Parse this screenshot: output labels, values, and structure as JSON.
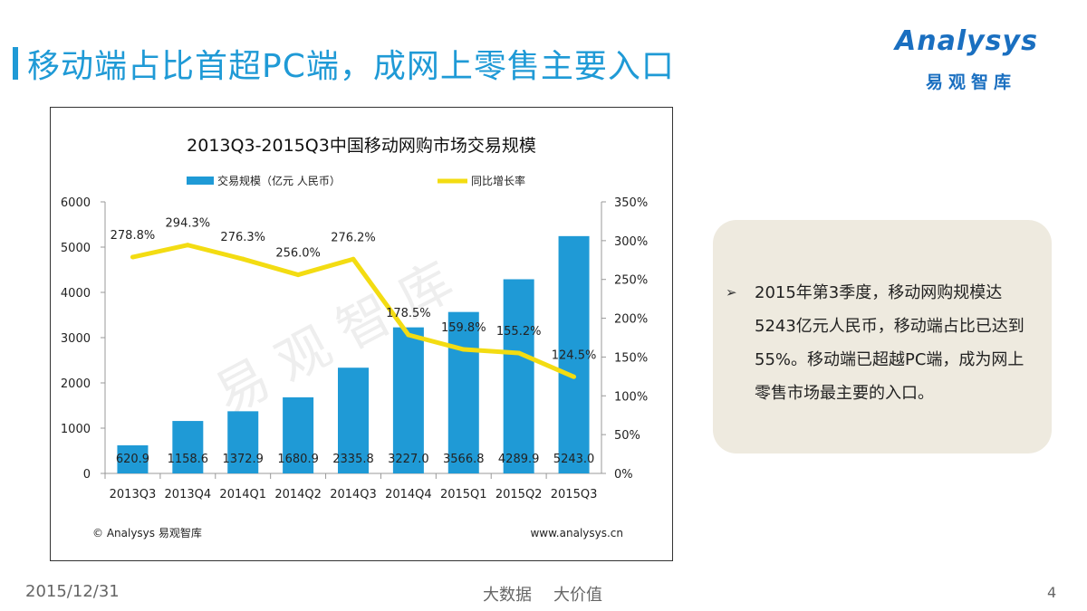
{
  "slide": {
    "title": "移动端占比首超PC端，成网上零售主要入口",
    "brand_accent": "#1f9ad6"
  },
  "logo": {
    "word": "Analysys",
    "sub": "易观智库",
    "color": "#1a6fc0"
  },
  "chart_data": {
    "type": "bar",
    "title": "2013Q3-2015Q3中国移动网购市场交易规模",
    "categories": [
      "2013Q3",
      "2013Q4",
      "2014Q1",
      "2014Q2",
      "2014Q3",
      "2014Q4",
      "2015Q1",
      "2015Q2",
      "2015Q3"
    ],
    "series": [
      {
        "name": "交易规模（亿元 人民币）",
        "type": "bar",
        "axis": "left",
        "color": "#1f9ad6",
        "values": [
          620.9,
          1158.6,
          1372.9,
          1680.9,
          2335.8,
          3227.0,
          3566.8,
          4289.9,
          5243.0
        ],
        "labels": [
          "620.9",
          "1158.6",
          "1372.9",
          "1680.9",
          "2335.8",
          "3227.0",
          "3566.8",
          "4289.9",
          "5243.0"
        ]
      },
      {
        "name": "同比增长率",
        "type": "line",
        "axis": "right",
        "color": "#f3dc12",
        "values": [
          278.8,
          294.3,
          276.3,
          256.0,
          276.2,
          178.5,
          159.8,
          155.2,
          124.5
        ],
        "labels": [
          "278.8%",
          "294.3%",
          "276.3%",
          "256.0%",
          "276.2%",
          "178.5%",
          "159.8%",
          "155.2%",
          "124.5%"
        ]
      }
    ],
    "y_left": {
      "min": 0,
      "max": 6000,
      "ticks": [
        "0",
        "1000",
        "2000",
        "3000",
        "4000",
        "5000",
        "6000"
      ]
    },
    "y_right": {
      "min": 0,
      "max": 350,
      "ticks": [
        "0%",
        "50%",
        "100%",
        "150%",
        "200%",
        "250%",
        "300%",
        "350%"
      ]
    },
    "legend_position": "top",
    "watermark": "易观智库",
    "source": "© Analysys 易观智库",
    "url": "www.analysys.cn"
  },
  "summary": {
    "bullet": "➢",
    "text": "2015年第3季度，移动网购规模达5243亿元人民币，移动端占比已达到55%。移动端已超越PC端，成为网上零售市场最主要的入口。"
  },
  "footer": {
    "date": "2015/12/31",
    "tag1": "大数据",
    "tag2": "大价值",
    "page": "4"
  }
}
